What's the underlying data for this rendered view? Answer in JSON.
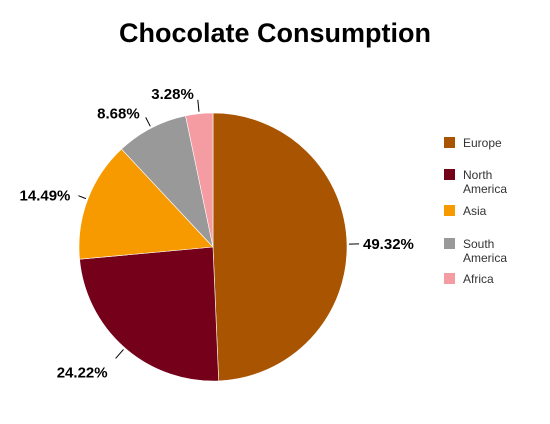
{
  "chart_data": {
    "type": "pie",
    "title": "Chocolate Consumption",
    "slices": [
      {
        "name": "Europe",
        "value": 49.32,
        "label": "49.32%",
        "color": "#A85400"
      },
      {
        "name": "North America",
        "value": 24.22,
        "label": "24.22%",
        "color": "#74001A"
      },
      {
        "name": "Asia",
        "value": 14.49,
        "label": "14.49%",
        "color": "#F79A00"
      },
      {
        "name": "South America",
        "value": 8.68,
        "label": "8.68%",
        "color": "#999999"
      },
      {
        "name": "Africa",
        "value": 3.28,
        "label": "3.28%",
        "color": "#F49CA1"
      }
    ],
    "legend": {
      "placement": "right",
      "entries": [
        {
          "lines": [
            "Europe"
          ],
          "color": "#A85400"
        },
        {
          "lines": [
            "North",
            "America"
          ],
          "color": "#74001A"
        },
        {
          "lines": [
            "Asia"
          ],
          "color": "#F79A00"
        },
        {
          "lines": [
            "South",
            "America"
          ],
          "color": "#999999"
        },
        {
          "lines": [
            "Africa"
          ],
          "color": "#F49CA1"
        }
      ]
    }
  }
}
